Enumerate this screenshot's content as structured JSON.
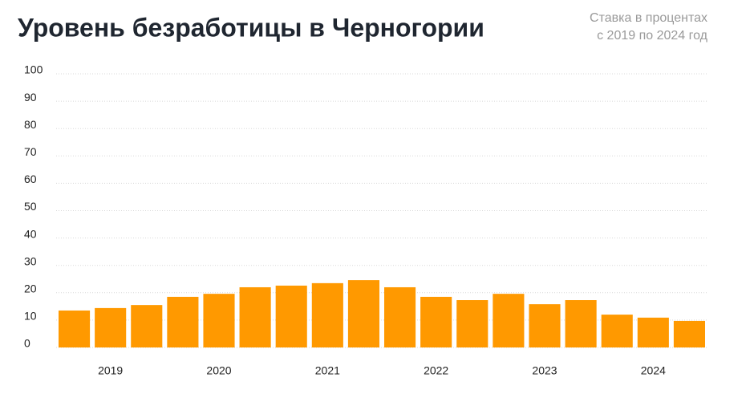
{
  "chart_data": {
    "type": "bar",
    "title": "Уровень безработицы в Черногории",
    "subtitle": [
      "Ставка в процентах",
      "с 2019 по 2024 год"
    ],
    "categories": [
      null,
      "2019",
      null,
      null,
      "2020",
      null,
      null,
      "2021",
      null,
      null,
      "2022",
      null,
      null,
      "2023",
      null,
      null,
      "2024",
      null
    ],
    "values": [
      13.5,
      14.4,
      15.5,
      18.5,
      19.6,
      22,
      22.6,
      23.5,
      24.6,
      22,
      18.5,
      17.3,
      19.6,
      15.8,
      17.3,
      12,
      10.9,
      9.7
    ],
    "color": "#ff9900",
    "ylim": [
      0,
      100
    ],
    "yticks": [
      0,
      10,
      20,
      30,
      40,
      50,
      60,
      70,
      80,
      90,
      100
    ],
    "grid": true
  }
}
